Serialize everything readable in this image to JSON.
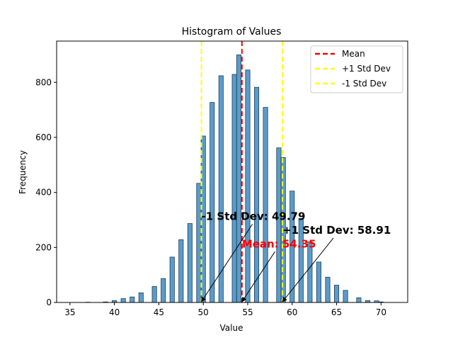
{
  "chart_data": {
    "type": "bar",
    "title": "Histogram of Values",
    "xlabel": "Value",
    "ylabel": "Frequency",
    "xlim": [
      33.5,
      73.0
    ],
    "ylim": [
      0,
      950
    ],
    "xticks": [
      35,
      40,
      45,
      50,
      55,
      60,
      65,
      70
    ],
    "yticks": [
      0,
      200,
      400,
      600,
      800
    ],
    "bar_width": 0.5,
    "bar_color": "#5b9bc8",
    "bar_edge_color": "#1f3f5c",
    "bars": [
      {
        "x": 37.0,
        "value": 1
      },
      {
        "x": 39.0,
        "value": 2
      },
      {
        "x": 40.0,
        "value": 7
      },
      {
        "x": 41.0,
        "value": 14
      },
      {
        "x": 42.0,
        "value": 20
      },
      {
        "x": 43.0,
        "value": 35
      },
      {
        "x": 44.5,
        "value": 58
      },
      {
        "x": 45.5,
        "value": 87
      },
      {
        "x": 46.5,
        "value": 165
      },
      {
        "x": 47.5,
        "value": 228
      },
      {
        "x": 48.5,
        "value": 287
      },
      {
        "x": 49.5,
        "value": 433
      },
      {
        "x": 50.0,
        "value": 605
      },
      {
        "x": 51.0,
        "value": 727
      },
      {
        "x": 52.0,
        "value": 824
      },
      {
        "x": 53.5,
        "value": 829
      },
      {
        "x": 54.0,
        "value": 900
      },
      {
        "x": 55.0,
        "value": 845
      },
      {
        "x": 56.0,
        "value": 782
      },
      {
        "x": 57.0,
        "value": 709
      },
      {
        "x": 58.5,
        "value": 562
      },
      {
        "x": 59.0,
        "value": 527
      },
      {
        "x": 60.0,
        "value": 405
      },
      {
        "x": 61.0,
        "value": 305
      },
      {
        "x": 62.0,
        "value": 220
      },
      {
        "x": 63.0,
        "value": 147
      },
      {
        "x": 64.0,
        "value": 92
      },
      {
        "x": 65.0,
        "value": 63
      },
      {
        "x": 66.0,
        "value": 44
      },
      {
        "x": 67.5,
        "value": 17
      },
      {
        "x": 68.5,
        "value": 7
      },
      {
        "x": 69.5,
        "value": 6
      },
      {
        "x": 70.0,
        "value": 2
      }
    ],
    "reference_lines": [
      {
        "name": "Mean",
        "x": 54.35,
        "color": "#ff0000",
        "style": "dashed"
      },
      {
        "name": "+1 Std Dev",
        "x": 58.91,
        "color": "#ffff00",
        "style": "dashed"
      },
      {
        "name": "-1 Std Dev",
        "x": 49.79,
        "color": "#ffff00",
        "style": "dashed"
      }
    ],
    "annotations": [
      {
        "text": "-1 Std Dev: 49.79",
        "color": "#000000",
        "text_x": 49.79,
        "text_y": 300,
        "arrow_to_x": 49.79,
        "arrow_to_y": 0
      },
      {
        "text": "Mean: 54.35",
        "color": "#ff0000",
        "text_x": 54.35,
        "text_y": 200,
        "arrow_to_x": 54.35,
        "arrow_to_y": 0
      },
      {
        "text": "+1 Std Dev: 58.91",
        "color": "#000000",
        "text_x": 58.91,
        "text_y": 250,
        "arrow_to_x": 58.91,
        "arrow_to_y": 0
      }
    ],
    "legend": {
      "placement": "top-right",
      "entries": [
        {
          "label": "Mean",
          "color": "#ff0000"
        },
        {
          "label": "+1 Std Dev",
          "color": "#ffff00"
        },
        {
          "label": "-1 Std Dev",
          "color": "#ffff00"
        }
      ]
    }
  }
}
